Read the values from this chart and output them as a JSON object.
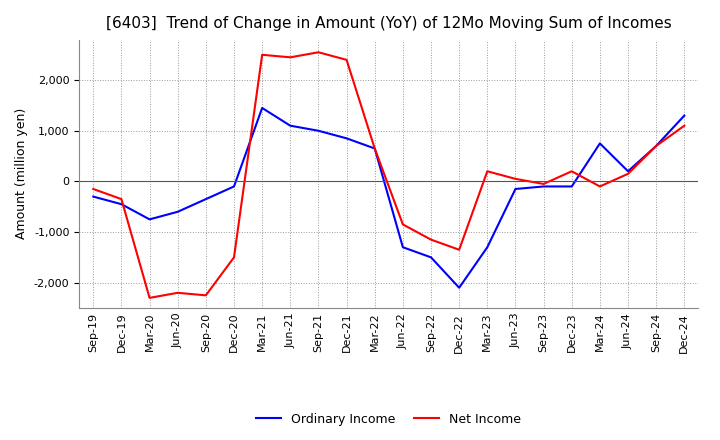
{
  "title": "[6403]  Trend of Change in Amount (YoY) of 12Mo Moving Sum of Incomes",
  "ylabel": "Amount (million yen)",
  "x_labels": [
    "Sep-19",
    "Dec-19",
    "Mar-20",
    "Jun-20",
    "Sep-20",
    "Dec-20",
    "Mar-21",
    "Jun-21",
    "Sep-21",
    "Dec-21",
    "Mar-22",
    "Jun-22",
    "Sep-22",
    "Dec-22",
    "Mar-23",
    "Jun-23",
    "Sep-23",
    "Dec-23",
    "Mar-24",
    "Jun-24",
    "Sep-24",
    "Dec-24"
  ],
  "ordinary_income": [
    -300,
    -450,
    -750,
    -600,
    -350,
    -100,
    1450,
    1100,
    1000,
    850,
    650,
    -1300,
    -1500,
    -2100,
    -1300,
    -150,
    -100,
    -100,
    750,
    200,
    700,
    1300
  ],
  "net_income": [
    -150,
    -350,
    -2300,
    -2200,
    -2250,
    -1500,
    2500,
    2450,
    2550,
    2400,
    650,
    -850,
    -1150,
    -1350,
    200,
    50,
    -50,
    200,
    -100,
    150,
    700,
    1100
  ],
  "ordinary_color": "#0000ff",
  "net_color": "#ff0000",
  "ylim": [
    -2500,
    2800
  ],
  "yticks": [
    -2000,
    -1000,
    0,
    1000,
    2000
  ],
  "background_color": "#ffffff",
  "legend_labels": [
    "Ordinary Income",
    "Net Income"
  ],
  "title_fontsize": 11,
  "label_fontsize": 9,
  "tick_fontsize": 8,
  "grid_color": "#999999",
  "grid_style": ":"
}
